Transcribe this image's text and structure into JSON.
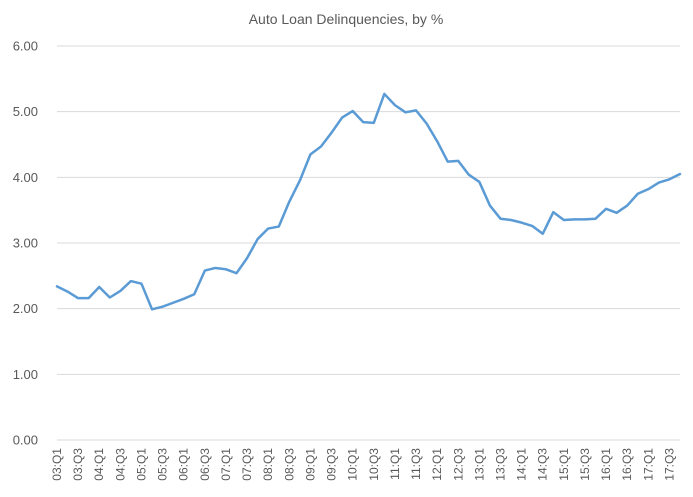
{
  "chart_data": {
    "type": "line",
    "title": "Auto Loan Delinquencies, by %",
    "xlabel": "",
    "ylabel": "",
    "ylim": [
      0,
      6
    ],
    "grid": true,
    "legend": "none",
    "y_ticks": [
      "0.00",
      "1.00",
      "2.00",
      "3.00",
      "4.00",
      "5.00",
      "6.00"
    ],
    "categories": [
      "03:Q1",
      "03:Q2",
      "03:Q3",
      "03:Q4",
      "04:Q1",
      "04:Q2",
      "04:Q3",
      "04:Q4",
      "05:Q1",
      "05:Q2",
      "05:Q3",
      "05:Q4",
      "06:Q1",
      "06:Q2",
      "06:Q3",
      "06:Q4",
      "07:Q1",
      "07:Q2",
      "07:Q3",
      "07:Q4",
      "08:Q1",
      "08:Q2",
      "08:Q3",
      "08:Q4",
      "09:Q1",
      "09:Q2",
      "09:Q3",
      "09:Q4",
      "10:Q1",
      "10:Q2",
      "10:Q3",
      "10:Q4",
      "11:Q1",
      "11:Q2",
      "11:Q3",
      "11:Q4",
      "12:Q1",
      "12:Q2",
      "12:Q3",
      "12:Q4",
      "13:Q1",
      "13:Q2",
      "13:Q3",
      "13:Q4",
      "14:Q1",
      "14:Q2",
      "14:Q3",
      "14:Q4",
      "15:Q1",
      "15:Q2",
      "15:Q3",
      "15:Q4",
      "16:Q1",
      "16:Q2",
      "16:Q3",
      "16:Q4",
      "17:Q1",
      "17:Q2",
      "17:Q3",
      "17:Q4"
    ],
    "labeled_categories": [
      "03:Q1",
      "03:Q3",
      "04:Q1",
      "04:Q3",
      "05:Q1",
      "05:Q3",
      "06:Q1",
      "06:Q3",
      "07:Q1",
      "07:Q3",
      "08:Q1",
      "08:Q3",
      "09:Q1",
      "09:Q3",
      "10:Q1",
      "10:Q3",
      "11:Q1",
      "11:Q3",
      "12:Q1",
      "12:Q3",
      "13:Q1",
      "13:Q3",
      "14:Q1",
      "14:Q3",
      "15:Q1",
      "15:Q3",
      "16:Q1",
      "16:Q3",
      "17:Q1",
      "17:Q3"
    ],
    "series": [
      {
        "color": "#5b9bd5",
        "values": [
          2.34,
          2.26,
          2.16,
          2.16,
          2.33,
          2.17,
          2.27,
          2.42,
          2.38,
          1.99,
          2.03,
          2.09,
          2.15,
          2.22,
          2.58,
          2.62,
          2.6,
          2.54,
          2.77,
          3.06,
          3.22,
          3.25,
          3.63,
          3.95,
          4.35,
          4.47,
          4.68,
          4.91,
          5.01,
          4.84,
          4.83,
          5.27,
          5.1,
          4.99,
          5.02,
          4.82,
          4.55,
          4.24,
          4.25,
          4.04,
          3.93,
          3.57,
          3.37,
          3.35,
          3.31,
          3.26,
          3.14,
          3.47,
          3.35,
          3.36,
          3.36,
          3.37,
          3.52,
          3.46,
          3.57,
          3.75,
          3.82,
          3.92,
          3.97,
          4.05
        ]
      }
    ]
  }
}
